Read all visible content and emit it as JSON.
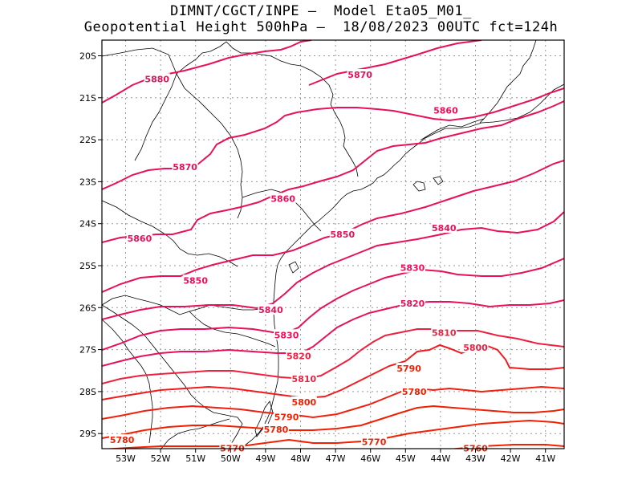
{
  "title": {
    "line1": "DIMNT/CGCT/INPE –  Model Eta05_M01_",
    "line2": "Geopotential Height 500hPa –  18/08/2023 00UTC fct=124h"
  },
  "colors": {
    "frame": "#000000",
    "grid": "#9a9a9a",
    "coast": "#000000",
    "contour_high": "#e8105a",
    "contour_low": "#f02000"
  },
  "axes": {
    "lon_labels": [
      "53W",
      "52W",
      "51W",
      "50W",
      "49W",
      "48W",
      "47W",
      "46W",
      "45W",
      "44W",
      "43W",
      "42W",
      "41W"
    ],
    "lat_labels": [
      "20S",
      "21S",
      "22S",
      "23S",
      "24S",
      "25S",
      "26S",
      "27S",
      "28S",
      "29S"
    ]
  },
  "contour_labels": [
    {
      "text": "5880",
      "lon": -52.1,
      "lat": -20.55,
      "tone": "high"
    },
    {
      "text": "5870",
      "lon": -46.3,
      "lat": -20.45,
      "tone": "high"
    },
    {
      "text": "5860",
      "lon": -43.85,
      "lat": -21.3,
      "tone": "high"
    },
    {
      "text": "5870",
      "lon": -51.3,
      "lat": -22.65,
      "tone": "high"
    },
    {
      "text": "5860",
      "lon": -48.5,
      "lat": -23.4,
      "tone": "high"
    },
    {
      "text": "5860",
      "lon": -52.6,
      "lat": -24.35,
      "tone": "high"
    },
    {
      "text": "5850",
      "lon": -46.8,
      "lat": -24.25,
      "tone": "high"
    },
    {
      "text": "5840",
      "lon": -43.9,
      "lat": -24.1,
      "tone": "high"
    },
    {
      "text": "5850",
      "lon": -51.0,
      "lat": -25.35,
      "tone": "high"
    },
    {
      "text": "5830",
      "lon": -44.8,
      "lat": -25.05,
      "tone": "high"
    },
    {
      "text": "5840",
      "lon": -48.85,
      "lat": -26.05,
      "tone": "high"
    },
    {
      "text": "5820",
      "lon": -44.8,
      "lat": -25.9,
      "tone": "high"
    },
    {
      "text": "5830",
      "lon": -48.4,
      "lat": -26.65,
      "tone": "high"
    },
    {
      "text": "5810",
      "lon": -43.9,
      "lat": -26.6,
      "tone": "mid"
    },
    {
      "text": "5820",
      "lon": -48.05,
      "lat": -27.15,
      "tone": "mid"
    },
    {
      "text": "5800",
      "lon": -43.0,
      "lat": -26.95,
      "tone": "mid"
    },
    {
      "text": "5810",
      "lon": -47.9,
      "lat": -27.7,
      "tone": "mid"
    },
    {
      "text": "5790",
      "lon": -44.9,
      "lat": -27.45,
      "tone": "low"
    },
    {
      "text": "5800",
      "lon": -47.9,
      "lat": -28.25,
      "tone": "low"
    },
    {
      "text": "5780",
      "lon": -44.75,
      "lat": -28.0,
      "tone": "low"
    },
    {
      "text": "5790",
      "lon": -48.4,
      "lat": -28.6,
      "tone": "low"
    },
    {
      "text": "5780",
      "lon": -48.7,
      "lat": -28.9,
      "tone": "low"
    },
    {
      "text": "5780",
      "lon": -53.1,
      "lat": -29.15,
      "tone": "low"
    },
    {
      "text": "5770",
      "lon": -45.9,
      "lat": -29.2,
      "tone": "low"
    },
    {
      "text": "5770",
      "lon": -49.95,
      "lat": -29.35,
      "tone": "low"
    },
    {
      "text": "5760",
      "lon": -43.0,
      "lat": -29.35,
      "tone": "low"
    }
  ]
}
